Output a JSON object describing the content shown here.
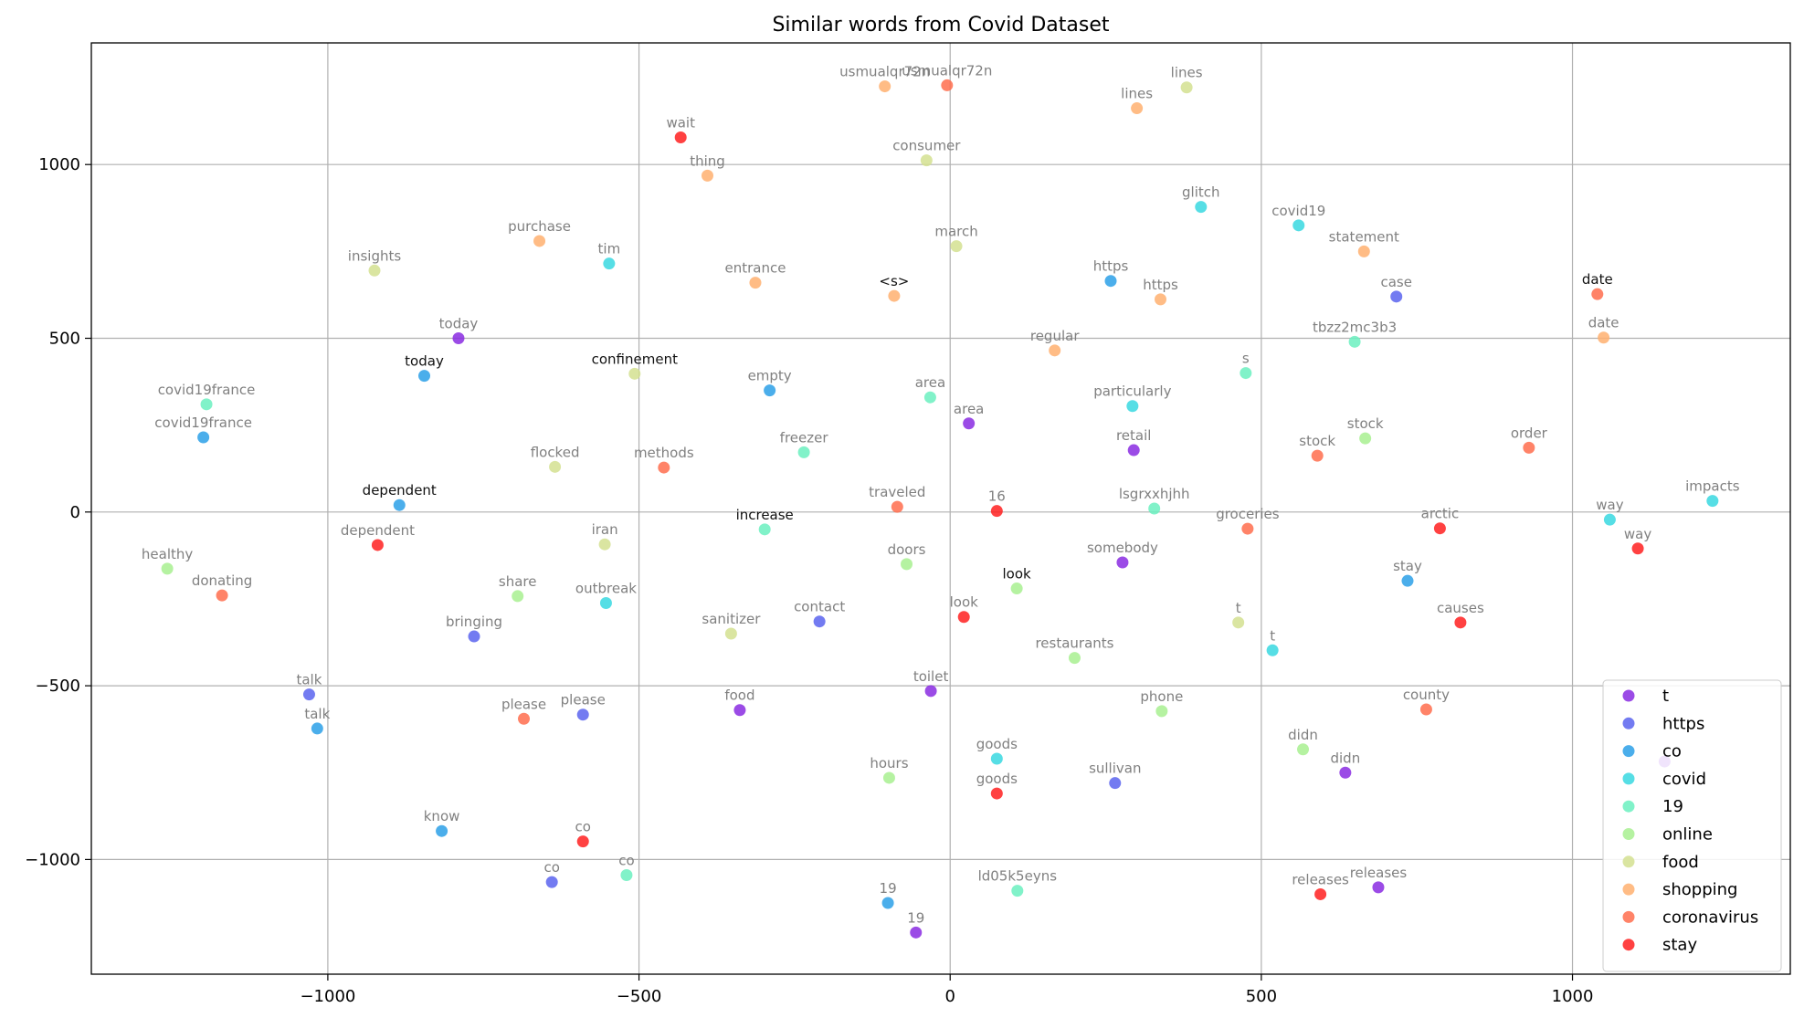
{
  "chart_data": {
    "type": "scatter",
    "title": "Similar words from Covid Dataset",
    "xlabel": "",
    "ylabel": "",
    "xlim": [
      -1380,
      1350
    ],
    "ylim": [
      -1330,
      1350
    ],
    "xticks": [
      -1000,
      -500,
      0,
      500,
      1000
    ],
    "xtick_labels": [
      "−1000",
      "−500",
      "0",
      "500",
      "1000"
    ],
    "yticks": [
      -1000,
      -500,
      0,
      500,
      1000
    ],
    "ytick_labels": [
      "−1000",
      "−500",
      "0",
      "500",
      "1000"
    ],
    "grid": true,
    "legend_position": "lower-right",
    "series": [
      {
        "name": "t",
        "color": "#8a2be2",
        "points": [
          {
            "x": -790,
            "y": 500,
            "label": "today"
          },
          {
            "x": 30,
            "y": 255,
            "label": "area"
          },
          {
            "x": 295,
            "y": 178,
            "label": "retail"
          },
          {
            "x": 277,
            "y": -145,
            "label": "somebody"
          },
          {
            "x": -31,
            "y": -515,
            "label": "toilet"
          },
          {
            "x": -338,
            "y": -570,
            "label": "food"
          },
          {
            "x": 635,
            "y": -750,
            "label": "didn"
          },
          {
            "x": -55,
            "y": -1210,
            "label": "19"
          },
          {
            "x": 688,
            "y": -1080,
            "label": "releases"
          },
          {
            "x": 1148,
            "y": -718,
            "label": ""
          }
        ]
      },
      {
        "name": "https",
        "color": "#5a64ee",
        "points": [
          {
            "x": 717,
            "y": 620,
            "label": "case"
          },
          {
            "x": -765,
            "y": -358,
            "label": "bringing"
          },
          {
            "x": -210,
            "y": -315,
            "label": "contact"
          },
          {
            "x": -1030,
            "y": -525,
            "label": "talk"
          },
          {
            "x": -590,
            "y": -583,
            "label": "please"
          },
          {
            "x": 265,
            "y": -780,
            "label": "sullivan"
          },
          {
            "x": -640,
            "y": -1065,
            "label": "co"
          }
        ]
      },
      {
        "name": "co",
        "color": "#2ca0e8",
        "points": [
          {
            "x": -845,
            "y": 392,
            "label": "today",
            "highlight": true
          },
          {
            "x": -1200,
            "y": 215,
            "label": "covid19france"
          },
          {
            "x": -885,
            "y": 20,
            "label": "dependent",
            "highlight": true
          },
          {
            "x": -290,
            "y": 350,
            "label": "empty"
          },
          {
            "x": 258,
            "y": 665,
            "label": "https"
          },
          {
            "x": 735,
            "y": -198,
            "label": "stay"
          },
          {
            "x": -1017,
            "y": -623,
            "label": "talk"
          },
          {
            "x": -817,
            "y": -918,
            "label": "know"
          },
          {
            "x": -100,
            "y": -1125,
            "label": "19"
          }
        ]
      },
      {
        "name": "covid",
        "color": "#38d8e0",
        "points": [
          {
            "x": -548,
            "y": 715,
            "label": "tim"
          },
          {
            "x": 403,
            "y": 878,
            "label": "glitch"
          },
          {
            "x": 560,
            "y": 825,
            "label": "covid19"
          },
          {
            "x": 293,
            "y": 305,
            "label": "particularly"
          },
          {
            "x": 1225,
            "y": 32,
            "label": "impacts"
          },
          {
            "x": 1060,
            "y": -22,
            "label": "way"
          },
          {
            "x": -553,
            "y": -262,
            "label": "outbreak"
          },
          {
            "x": 518,
            "y": -398,
            "label": "t"
          },
          {
            "x": 75,
            "y": -710,
            "label": "goods"
          }
        ]
      },
      {
        "name": "19",
        "color": "#6bf0c0",
        "points": [
          {
            "x": -1195,
            "y": 310,
            "label": "covid19france"
          },
          {
            "x": -32,
            "y": 330,
            "label": "area"
          },
          {
            "x": 475,
            "y": 400,
            "label": "s"
          },
          {
            "x": 650,
            "y": 490,
            "label": "tbzz2mc3b3"
          },
          {
            "x": -235,
            "y": 172,
            "label": "freezer"
          },
          {
            "x": 328,
            "y": 10,
            "label": "lsgrxxhjhh"
          },
          {
            "x": -298,
            "y": -50,
            "label": "increase",
            "highlight": true
          },
          {
            "x": 108,
            "y": -1090,
            "label": "ld05k5eyns"
          },
          {
            "x": -520,
            "y": -1045,
            "label": "co"
          }
        ]
      },
      {
        "name": "online",
        "color": "#a8f090",
        "points": [
          {
            "x": 667,
            "y": 212,
            "label": "stock"
          },
          {
            "x": -1258,
            "y": -163,
            "label": "healthy"
          },
          {
            "x": -695,
            "y": -242,
            "label": "share"
          },
          {
            "x": -70,
            "y": -150,
            "label": "doors"
          },
          {
            "x": 107,
            "y": -220,
            "label": "look",
            "highlight": true
          },
          {
            "x": 200,
            "y": -420,
            "label": "restaurants"
          },
          {
            "x": 340,
            "y": -573,
            "label": "phone"
          },
          {
            "x": -98,
            "y": -765,
            "label": "hours"
          },
          {
            "x": 567,
            "y": -683,
            "label": "didn"
          }
        ]
      },
      {
        "name": "food",
        "color": "#d4e090",
        "points": [
          {
            "x": -925,
            "y": 695,
            "label": "insights"
          },
          {
            "x": 380,
            "y": 1222,
            "label": "lines"
          },
          {
            "x": -38,
            "y": 1012,
            "label": "consumer"
          },
          {
            "x": 10,
            "y": 765,
            "label": "march"
          },
          {
            "x": -507,
            "y": 398,
            "label": "confinement",
            "highlight": true
          },
          {
            "x": -635,
            "y": 130,
            "label": "flocked"
          },
          {
            "x": -555,
            "y": -93,
            "label": "iran"
          },
          {
            "x": -352,
            "y": -350,
            "label": "sanitizer"
          },
          {
            "x": 463,
            "y": -318,
            "label": "t"
          }
        ]
      },
      {
        "name": "shopping",
        "color": "#ffb070",
        "points": [
          {
            "x": -105,
            "y": 1225,
            "label": "usmualqr72n"
          },
          {
            "x": 300,
            "y": 1162,
            "label": "lines"
          },
          {
            "x": -390,
            "y": 968,
            "label": "thing"
          },
          {
            "x": -660,
            "y": 780,
            "label": "purchase"
          },
          {
            "x": -313,
            "y": 660,
            "label": "entrance"
          },
          {
            "x": -90,
            "y": 622,
            "label": "<s>",
            "highlight": true
          },
          {
            "x": 338,
            "y": 612,
            "label": "https"
          },
          {
            "x": 665,
            "y": 750,
            "label": "statement"
          },
          {
            "x": 168,
            "y": 465,
            "label": "regular"
          },
          {
            "x": 1050,
            "y": 502,
            "label": "date"
          }
        ]
      },
      {
        "name": "coronavirus",
        "color": "#ff6d4d",
        "points": [
          {
            "x": -5,
            "y": 1228,
            "label": "usmualqr72n"
          },
          {
            "x": -460,
            "y": 128,
            "label": "methods"
          },
          {
            "x": -85,
            "y": 15,
            "label": "traveled"
          },
          {
            "x": 590,
            "y": 162,
            "label": "stock"
          },
          {
            "x": 930,
            "y": 185,
            "label": "order"
          },
          {
            "x": 478,
            "y": -48,
            "label": "groceries"
          },
          {
            "x": -1170,
            "y": -240,
            "label": "donating"
          },
          {
            "x": -685,
            "y": -595,
            "label": "please"
          },
          {
            "x": 765,
            "y": -568,
            "label": "county"
          },
          {
            "x": 1040,
            "y": 627,
            "label": "date",
            "highlight": true
          }
        ]
      },
      {
        "name": "stay",
        "color": "#ff2020",
        "points": [
          {
            "x": -433,
            "y": 1078,
            "label": "wait"
          },
          {
            "x": 75,
            "y": 3,
            "label": "16"
          },
          {
            "x": -920,
            "y": -95,
            "label": "dependent"
          },
          {
            "x": 787,
            "y": -47,
            "label": "arctic"
          },
          {
            "x": 1105,
            "y": -105,
            "label": "way"
          },
          {
            "x": 22,
            "y": -302,
            "label": "look"
          },
          {
            "x": 820,
            "y": -318,
            "label": "causes"
          },
          {
            "x": -590,
            "y": -948,
            "label": "co"
          },
          {
            "x": 595,
            "y": -1100,
            "label": "releases"
          },
          {
            "x": 75,
            "y": -810,
            "label": "goods"
          }
        ]
      }
    ]
  }
}
